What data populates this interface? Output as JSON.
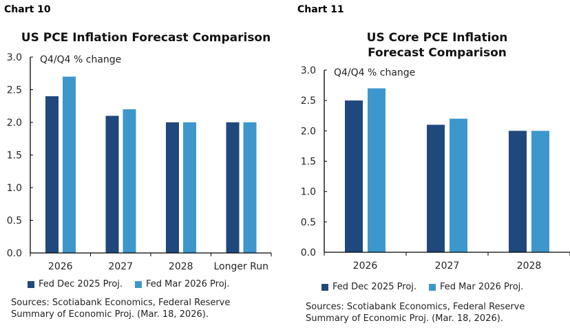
{
  "colors": {
    "dark": "#1F497D",
    "light": "#3D97CC"
  },
  "chart_data": [
    {
      "type": "bar",
      "label": "Chart 10",
      "title": "US PCE Inflation Forecast Comparison",
      "ylabel": "Q4/Q4 % change",
      "categories": [
        "2026",
        "2027",
        "2028",
        "Longer Run"
      ],
      "ylim": [
        0,
        3
      ],
      "yticks": [
        "0.0",
        "0.5",
        "1.0",
        "1.5",
        "2.0",
        "2.5",
        "3.0"
      ],
      "series": [
        {
          "name": "Fed Dec 2025 Proj.",
          "values": [
            2.4,
            2.1,
            2.0,
            2.0
          ]
        },
        {
          "name": "Fed Mar 2026 Proj.",
          "values": [
            2.7,
            2.2,
            2.0,
            2.0
          ]
        }
      ],
      "legend": "bottom",
      "source": [
        "Sources: Scotiabank Economics, Federal Reserve",
        "Summary of Economic Proj. (Mar. 18, 2026)."
      ]
    },
    {
      "type": "bar",
      "label": "Chart 11",
      "title": "US Core PCE Inflation Forecast Comparison",
      "ylabel": "Q4/Q4 % change",
      "categories": [
        "2026",
        "2027",
        "2028"
      ],
      "ylim": [
        0,
        3
      ],
      "yticks": [
        "0.0",
        "0.5",
        "1.0",
        "1.5",
        "2.0",
        "2.5",
        "3.0"
      ],
      "series": [
        {
          "name": "Fed Dec 2025 Proj.",
          "values": [
            2.5,
            2.1,
            2.0
          ]
        },
        {
          "name": "Fed Mar 2026 Proj.",
          "values": [
            2.7,
            2.2,
            2.0
          ]
        }
      ],
      "legend": "bottom",
      "source": [
        "Sources: Scotiabank Economics, Federal Reserve",
        "Summary of Economic Proj. (Mar. 18, 2026)."
      ]
    }
  ]
}
